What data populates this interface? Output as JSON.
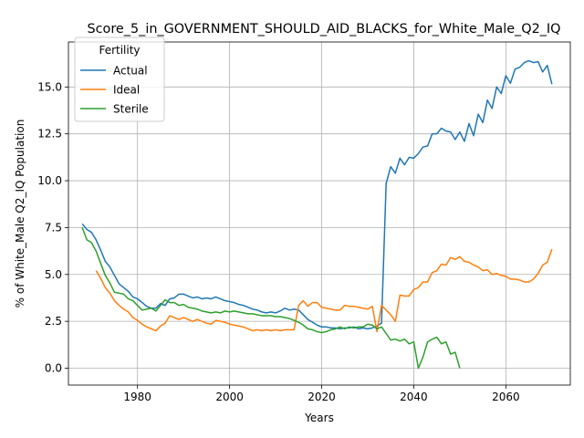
{
  "chart_data": {
    "type": "line",
    "title": "Score_5_in_GOVERNMENT_SHOULD_AID_BLACKS_for_White_Male_Q2_IQ",
    "xlabel": "Years",
    "ylabel": "% of White_Male Q2_IQ Population",
    "xlim": [
      1965,
      2074
    ],
    "ylim": [
      -0.9,
      17.4
    ],
    "x_ticks": [
      1980,
      2000,
      2020,
      2040,
      2060
    ],
    "y_ticks": [
      0.0,
      2.5,
      5.0,
      7.5,
      10.0,
      12.5,
      15.0
    ],
    "x_tick_labels": [
      "1980",
      "2000",
      "2020",
      "2040",
      "2060"
    ],
    "y_tick_labels": [
      "0.0",
      "2.5",
      "5.0",
      "7.5",
      "10.0",
      "12.5",
      "15.0"
    ],
    "grid": true,
    "legend": {
      "title": "Fertility",
      "position": "top-left"
    },
    "series": [
      {
        "name": "Actual",
        "color": "#1f77b4",
        "points": [
          [
            1968,
            7.7
          ],
          [
            1969,
            7.4
          ],
          [
            1970,
            7.25
          ],
          [
            1971,
            6.85
          ],
          [
            1972,
            6.3
          ],
          [
            1973,
            5.7
          ],
          [
            1974,
            5.4
          ],
          [
            1975,
            4.95
          ],
          [
            1976,
            4.5
          ],
          [
            1977,
            4.3
          ],
          [
            1978,
            4.1
          ],
          [
            1979,
            3.8
          ],
          [
            1980,
            3.7
          ],
          [
            1981,
            3.5
          ],
          [
            1982,
            3.3
          ],
          [
            1983,
            3.2
          ],
          [
            1984,
            3.2
          ],
          [
            1985,
            3.45
          ],
          [
            1986,
            3.35
          ],
          [
            1987,
            3.7
          ],
          [
            1988,
            3.75
          ],
          [
            1989,
            3.95
          ],
          [
            1990,
            3.95
          ],
          [
            1991,
            3.85
          ],
          [
            1992,
            3.75
          ],
          [
            1993,
            3.8
          ],
          [
            1994,
            3.7
          ],
          [
            1995,
            3.75
          ],
          [
            1996,
            3.7
          ],
          [
            1997,
            3.8
          ],
          [
            1998,
            3.7
          ],
          [
            1999,
            3.6
          ],
          [
            2000,
            3.55
          ],
          [
            2001,
            3.5
          ],
          [
            2002,
            3.4
          ],
          [
            2003,
            3.35
          ],
          [
            2004,
            3.25
          ],
          [
            2005,
            3.15
          ],
          [
            2006,
            3.1
          ],
          [
            2007,
            3.0
          ],
          [
            2008,
            2.95
          ],
          [
            2009,
            3.0
          ],
          [
            2010,
            2.95
          ],
          [
            2011,
            3.05
          ],
          [
            2012,
            3.2
          ],
          [
            2013,
            3.1
          ],
          [
            2014,
            3.15
          ],
          [
            2015,
            3.1
          ],
          [
            2016,
            2.85
          ],
          [
            2017,
            2.6
          ],
          [
            2018,
            2.45
          ],
          [
            2019,
            2.3
          ],
          [
            2020,
            2.2
          ],
          [
            2021,
            2.2
          ],
          [
            2022,
            2.15
          ],
          [
            2023,
            2.15
          ],
          [
            2024,
            2.1
          ],
          [
            2025,
            2.15
          ],
          [
            2026,
            2.15
          ],
          [
            2027,
            2.2
          ],
          [
            2028,
            2.1
          ],
          [
            2029,
            2.15
          ],
          [
            2030,
            2.1
          ],
          [
            2031,
            2.15
          ],
          [
            2032,
            2.25
          ],
          [
            2033,
            2.4
          ],
          [
            2034,
            9.85
          ],
          [
            2035,
            10.75
          ],
          [
            2036,
            10.4
          ],
          [
            2037,
            11.2
          ],
          [
            2038,
            10.85
          ],
          [
            2039,
            11.25
          ],
          [
            2040,
            11.2
          ],
          [
            2041,
            11.45
          ],
          [
            2042,
            11.8
          ],
          [
            2043,
            11.85
          ],
          [
            2044,
            12.5
          ],
          [
            2045,
            12.5
          ],
          [
            2046,
            12.8
          ],
          [
            2047,
            12.65
          ],
          [
            2048,
            12.6
          ],
          [
            2049,
            12.2
          ],
          [
            2050,
            12.6
          ],
          [
            2051,
            12.1
          ],
          [
            2052,
            13.05
          ],
          [
            2053,
            12.4
          ],
          [
            2054,
            13.55
          ],
          [
            2055,
            13.1
          ],
          [
            2056,
            14.3
          ],
          [
            2057,
            13.85
          ],
          [
            2058,
            15.0
          ],
          [
            2059,
            14.65
          ],
          [
            2060,
            15.6
          ],
          [
            2061,
            15.2
          ],
          [
            2062,
            15.95
          ],
          [
            2063,
            16.05
          ],
          [
            2064,
            16.3
          ],
          [
            2065,
            16.4
          ],
          [
            2066,
            16.3
          ],
          [
            2067,
            16.35
          ],
          [
            2068,
            15.8
          ],
          [
            2069,
            16.15
          ],
          [
            2070,
            15.15
          ]
        ]
      },
      {
        "name": "Ideal",
        "color": "#ff7f0e",
        "points": [
          [
            1971,
            5.2
          ],
          [
            1972,
            4.8
          ],
          [
            1973,
            4.3
          ],
          [
            1974,
            4.0
          ],
          [
            1975,
            3.6
          ],
          [
            1976,
            3.35
          ],
          [
            1977,
            3.15
          ],
          [
            1978,
            3.0
          ],
          [
            1979,
            2.7
          ],
          [
            1980,
            2.55
          ],
          [
            1981,
            2.35
          ],
          [
            1982,
            2.2
          ],
          [
            1983,
            2.1
          ],
          [
            1984,
            2.0
          ],
          [
            1985,
            2.25
          ],
          [
            1986,
            2.4
          ],
          [
            1987,
            2.8
          ],
          [
            1988,
            2.7
          ],
          [
            1989,
            2.6
          ],
          [
            1990,
            2.7
          ],
          [
            1991,
            2.6
          ],
          [
            1992,
            2.5
          ],
          [
            1993,
            2.6
          ],
          [
            1994,
            2.5
          ],
          [
            1995,
            2.4
          ],
          [
            1996,
            2.35
          ],
          [
            1997,
            2.55
          ],
          [
            1998,
            2.5
          ],
          [
            1999,
            2.45
          ],
          [
            2000,
            2.35
          ],
          [
            2001,
            2.3
          ],
          [
            2002,
            2.25
          ],
          [
            2003,
            2.2
          ],
          [
            2004,
            2.1
          ],
          [
            2005,
            2.0
          ],
          [
            2006,
            2.05
          ],
          [
            2007,
            2.0
          ],
          [
            2008,
            2.05
          ],
          [
            2009,
            2.0
          ],
          [
            2010,
            2.05
          ],
          [
            2011,
            2.0
          ],
          [
            2012,
            2.05
          ],
          [
            2013,
            2.05
          ],
          [
            2014,
            2.05
          ],
          [
            2015,
            3.35
          ],
          [
            2016,
            3.6
          ],
          [
            2017,
            3.3
          ],
          [
            2018,
            3.5
          ],
          [
            2019,
            3.5
          ],
          [
            2020,
            3.25
          ],
          [
            2021,
            3.2
          ],
          [
            2022,
            3.15
          ],
          [
            2023,
            3.1
          ],
          [
            2024,
            3.1
          ],
          [
            2025,
            3.35
          ],
          [
            2026,
            3.3
          ],
          [
            2027,
            3.3
          ],
          [
            2028,
            3.25
          ],
          [
            2029,
            3.2
          ],
          [
            2030,
            3.15
          ],
          [
            2031,
            3.3
          ],
          [
            2032,
            1.95
          ],
          [
            2033,
            3.35
          ],
          [
            2034,
            3.1
          ],
          [
            2035,
            2.85
          ],
          [
            2036,
            2.5
          ],
          [
            2037,
            3.9
          ],
          [
            2038,
            3.85
          ],
          [
            2039,
            3.85
          ],
          [
            2040,
            4.2
          ],
          [
            2041,
            4.3
          ],
          [
            2042,
            4.6
          ],
          [
            2043,
            4.6
          ],
          [
            2044,
            5.1
          ],
          [
            2045,
            5.2
          ],
          [
            2046,
            5.55
          ],
          [
            2047,
            5.5
          ],
          [
            2048,
            5.9
          ],
          [
            2049,
            5.8
          ],
          [
            2050,
            5.95
          ],
          [
            2051,
            5.7
          ],
          [
            2052,
            5.65
          ],
          [
            2053,
            5.5
          ],
          [
            2054,
            5.4
          ],
          [
            2055,
            5.2
          ],
          [
            2056,
            5.25
          ],
          [
            2057,
            5.0
          ],
          [
            2058,
            5.05
          ],
          [
            2059,
            4.95
          ],
          [
            2060,
            4.9
          ],
          [
            2061,
            4.75
          ],
          [
            2062,
            4.75
          ],
          [
            2063,
            4.7
          ],
          [
            2064,
            4.6
          ],
          [
            2065,
            4.6
          ],
          [
            2066,
            4.75
          ],
          [
            2067,
            5.05
          ],
          [
            2068,
            5.5
          ],
          [
            2069,
            5.65
          ],
          [
            2070,
            6.35
          ]
        ]
      },
      {
        "name": "Sterile",
        "color": "#2ca02c",
        "points": [
          [
            1968,
            7.5
          ],
          [
            1969,
            6.85
          ],
          [
            1970,
            6.7
          ],
          [
            1971,
            6.25
          ],
          [
            1972,
            5.6
          ],
          [
            1973,
            4.95
          ],
          [
            1974,
            4.55
          ],
          [
            1975,
            4.05
          ],
          [
            1976,
            4.0
          ],
          [
            1977,
            3.95
          ],
          [
            1978,
            3.7
          ],
          [
            1979,
            3.6
          ],
          [
            1980,
            3.35
          ],
          [
            1981,
            3.1
          ],
          [
            1982,
            3.15
          ],
          [
            1983,
            3.2
          ],
          [
            1984,
            3.05
          ],
          [
            1985,
            3.35
          ],
          [
            1986,
            3.65
          ],
          [
            1987,
            3.5
          ],
          [
            1988,
            3.5
          ],
          [
            1989,
            3.35
          ],
          [
            1990,
            3.4
          ],
          [
            1991,
            3.25
          ],
          [
            1992,
            3.2
          ],
          [
            1993,
            3.15
          ],
          [
            1994,
            3.05
          ],
          [
            1995,
            3.0
          ],
          [
            1996,
            2.95
          ],
          [
            1997,
            3.0
          ],
          [
            1998,
            2.95
          ],
          [
            1999,
            3.05
          ],
          [
            2000,
            3.0
          ],
          [
            2001,
            3.05
          ],
          [
            2002,
            3.0
          ],
          [
            2003,
            2.95
          ],
          [
            2004,
            2.9
          ],
          [
            2005,
            2.9
          ],
          [
            2006,
            2.85
          ],
          [
            2007,
            2.8
          ],
          [
            2008,
            2.8
          ],
          [
            2009,
            2.8
          ],
          [
            2010,
            2.75
          ],
          [
            2011,
            2.75
          ],
          [
            2012,
            2.7
          ],
          [
            2013,
            2.65
          ],
          [
            2014,
            2.55
          ],
          [
            2015,
            2.45
          ],
          [
            2016,
            2.3
          ],
          [
            2017,
            2.1
          ],
          [
            2018,
            2.05
          ],
          [
            2019,
            1.95
          ],
          [
            2020,
            1.9
          ],
          [
            2021,
            1.95
          ],
          [
            2022,
            2.05
          ],
          [
            2023,
            2.1
          ],
          [
            2024,
            2.2
          ],
          [
            2025,
            2.1
          ],
          [
            2026,
            2.2
          ],
          [
            2027,
            2.15
          ],
          [
            2028,
            2.2
          ],
          [
            2029,
            2.2
          ],
          [
            2030,
            2.35
          ],
          [
            2031,
            2.3
          ],
          [
            2032,
            2.1
          ],
          [
            2033,
            2.2
          ],
          [
            2034,
            1.85
          ],
          [
            2035,
            1.5
          ],
          [
            2036,
            1.55
          ],
          [
            2037,
            1.45
          ],
          [
            2038,
            1.55
          ],
          [
            2039,
            1.3
          ],
          [
            2040,
            1.4
          ],
          [
            2041,
            0.0
          ],
          [
            2042,
            0.6
          ],
          [
            2043,
            1.4
          ],
          [
            2044,
            1.55
          ],
          [
            2045,
            1.65
          ],
          [
            2046,
            1.3
          ],
          [
            2047,
            1.4
          ],
          [
            2048,
            0.75
          ],
          [
            2049,
            0.85
          ],
          [
            2050,
            0.0
          ]
        ]
      }
    ]
  }
}
